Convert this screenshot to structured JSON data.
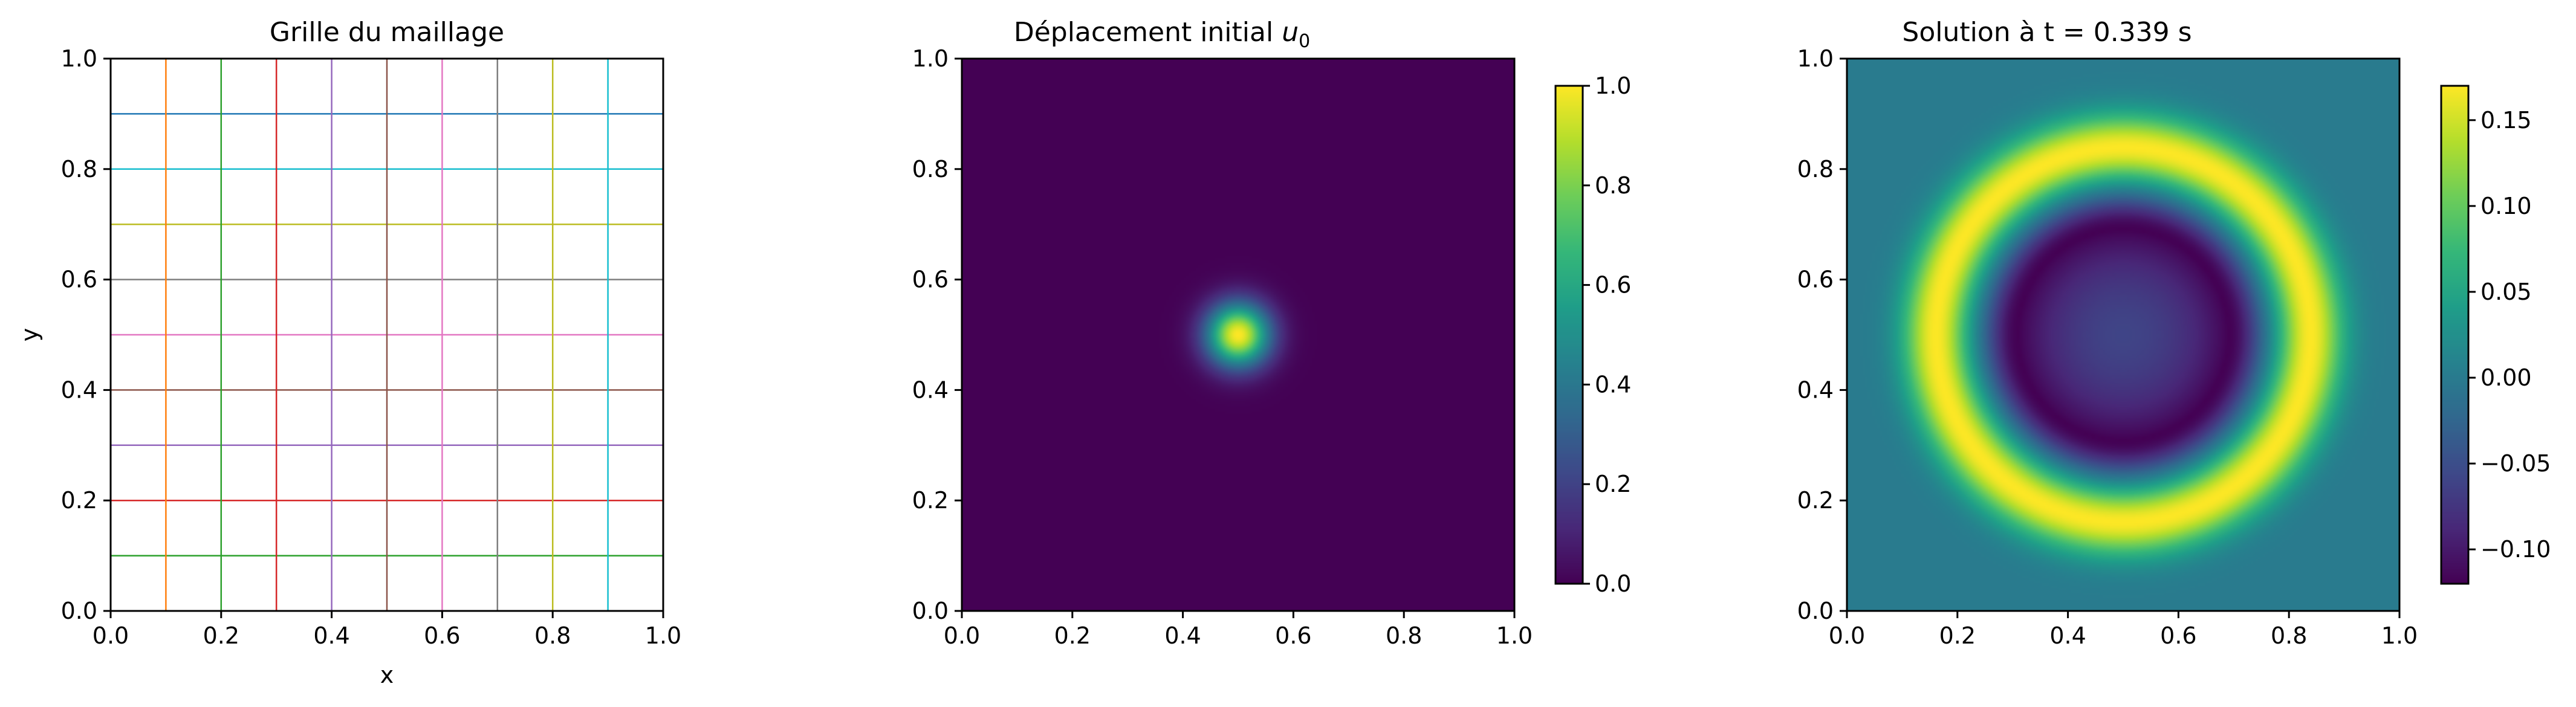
{
  "chart_data": [
    {
      "type": "line",
      "title": "Grille du maillage",
      "xlabel": "x",
      "ylabel": "y",
      "xlim": [
        0.0,
        1.0
      ],
      "ylim": [
        0.0,
        1.0
      ],
      "xticks": [
        "0.0",
        "0.2",
        "0.4",
        "0.6",
        "0.8",
        "1.0"
      ],
      "yticks": [
        "0.0",
        "0.2",
        "0.4",
        "0.6",
        "0.8",
        "1.0"
      ],
      "grid_vertical_x": [
        0.1,
        0.2,
        0.3,
        0.4,
        0.5,
        0.6,
        0.7,
        0.8,
        0.9
      ],
      "grid_horizontal_y": [
        0.1,
        0.2,
        0.3,
        0.4,
        0.5,
        0.6,
        0.7,
        0.8,
        0.9
      ],
      "vertical_colors": [
        "#ff7f0e",
        "#2ca02c",
        "#d62728",
        "#9467bd",
        "#8c564b",
        "#e377c2",
        "#7f7f7f",
        "#bcbd22",
        "#17becf"
      ],
      "horizontal_colors": [
        "#2ca02c",
        "#d62728",
        "#9467bd",
        "#8c564b",
        "#e377c2",
        "#7f7f7f",
        "#bcbd22",
        "#17becf",
        "#1f77b4"
      ]
    },
    {
      "type": "heatmap",
      "title_prefix": "Déplacement initial ",
      "title_math": "u",
      "title_sub": "0",
      "xlim": [
        0.0,
        1.0
      ],
      "ylim": [
        0.0,
        1.0
      ],
      "xticks": [
        "0.0",
        "0.2",
        "0.4",
        "0.6",
        "0.8",
        "1.0"
      ],
      "yticks": [
        "0.0",
        "0.2",
        "0.4",
        "0.6",
        "0.8",
        "1.0"
      ],
      "field": {
        "kind": "gaussian",
        "center": [
          0.5,
          0.5
        ],
        "sigma": 0.04,
        "amplitude": 1.0
      },
      "colormap": "viridis",
      "colorbar": {
        "vmin": 0.0,
        "vmax": 1.0,
        "ticks": [
          "0.0",
          "0.2",
          "0.4",
          "0.6",
          "0.8",
          "1.0"
        ],
        "tick_values": [
          0.0,
          0.2,
          0.4,
          0.6,
          0.8,
          1.0
        ]
      }
    },
    {
      "type": "heatmap",
      "title": "Solution à t = 0.339 s",
      "xlim": [
        0.0,
        1.0
      ],
      "ylim": [
        0.0,
        1.0
      ],
      "xticks": [
        "0.0",
        "0.2",
        "0.4",
        "0.6",
        "0.8",
        "1.0"
      ],
      "yticks": [
        "0.0",
        "0.2",
        "0.4",
        "0.6",
        "0.8",
        "1.0"
      ],
      "field": {
        "kind": "ring",
        "center": [
          0.5,
          0.5
        ],
        "ring_radius": 0.339,
        "ring_width": 0.06,
        "ring_peak": 0.17,
        "trough_radius": 0.19,
        "trough_width": 0.06,
        "trough_min": -0.12,
        "center_value": -0.06
      },
      "colormap": "viridis",
      "colorbar": {
        "vmin": -0.12,
        "vmax": 0.17,
        "ticks": [
          "−0.10",
          "−0.05",
          "0.00",
          "0.05",
          "0.10",
          "0.15"
        ],
        "tick_values": [
          -0.1,
          -0.05,
          0.0,
          0.05,
          0.1,
          0.15
        ]
      }
    }
  ]
}
